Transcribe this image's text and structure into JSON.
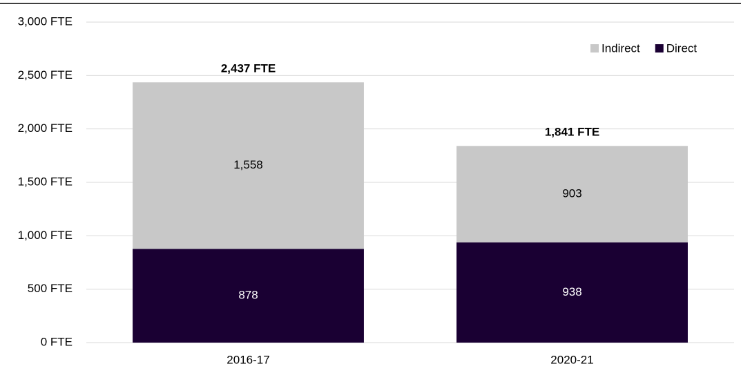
{
  "chart_data": {
    "type": "stacked_bar",
    "categories": [
      "2016-17",
      "2020-21"
    ],
    "series": [
      {
        "name": "Direct",
        "color": "#1a0033",
        "values": [
          878,
          938
        ],
        "value_labels": [
          "878",
          "938"
        ]
      },
      {
        "name": "Indirect",
        "color": "#c8c8c8",
        "values": [
          1558,
          903
        ],
        "value_labels": [
          "1,558",
          "903"
        ]
      }
    ],
    "totals": [
      2437,
      1841
    ],
    "total_labels": [
      "2,437 FTE",
      "1,841 FTE"
    ],
    "ylim": [
      0,
      3000
    ],
    "yticks": [
      {
        "value": 0,
        "label": "0 FTE"
      },
      {
        "value": 500,
        "label": "500 FTE"
      },
      {
        "value": 1000,
        "label": "1,000 FTE"
      },
      {
        "value": 1500,
        "label": "1,500 FTE"
      },
      {
        "value": 2000,
        "label": "2,000 FTE"
      },
      {
        "value": 2500,
        "label": "2,500 FTE"
      },
      {
        "value": 3000,
        "label": "3,000 FTE"
      }
    ],
    "grid": true,
    "legend": "top-right"
  }
}
